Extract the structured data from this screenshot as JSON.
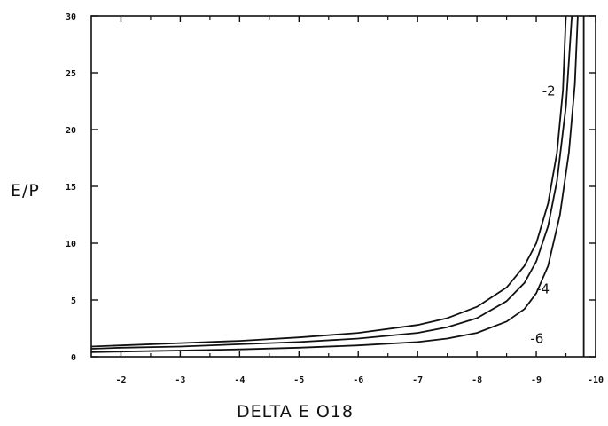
{
  "chart_data": {
    "type": "line",
    "title": "",
    "xlabel": "DELTA E O18",
    "ylabel": "E/P",
    "xlim": [
      -1.5,
      -10
    ],
    "ylim": [
      0,
      30
    ],
    "grid": false,
    "xticks": [
      -2,
      -3,
      -4,
      -5,
      -6,
      -7,
      -8,
      -9,
      -10
    ],
    "x_tick_labels": [
      "-2",
      "-3",
      "-4",
      "-5",
      "-6",
      "-7",
      "-8",
      "-9",
      "-10"
    ],
    "yticks": [
      0,
      5,
      10,
      15,
      20,
      25,
      30
    ],
    "y_tick_labels": [
      "0",
      "5",
      "10",
      "15",
      "20",
      "25",
      "30"
    ],
    "series": [
      {
        "name": "-2",
        "x": [
          -1.5,
          -2,
          -3,
          -4,
          -5,
          -6,
          -7,
          -7.5,
          -8,
          -8.5,
          -8.8,
          -9,
          -9.2,
          -9.35,
          -9.45,
          -9.5
        ],
        "y": [
          0.9,
          1.0,
          1.2,
          1.4,
          1.7,
          2.1,
          2.8,
          3.4,
          4.4,
          6.1,
          8.0,
          10.0,
          13.5,
          18.0,
          23.5,
          30.0
        ]
      },
      {
        "name": "-4",
        "x": [
          -1.5,
          -2,
          -3,
          -4,
          -5,
          -6,
          -7,
          -7.5,
          -8,
          -8.5,
          -8.8,
          -9,
          -9.2,
          -9.35,
          -9.5,
          -9.6
        ],
        "y": [
          0.7,
          0.8,
          0.9,
          1.1,
          1.3,
          1.6,
          2.1,
          2.6,
          3.4,
          4.9,
          6.5,
          8.4,
          11.5,
          15.5,
          22.0,
          30.0
        ]
      },
      {
        "name": "-6",
        "x": [
          -1.5,
          -2,
          -3,
          -4,
          -5,
          -6,
          -7,
          -7.5,
          -8,
          -8.5,
          -8.8,
          -9,
          -9.2,
          -9.4,
          -9.55,
          -9.65,
          -9.7
        ],
        "y": [
          0.4,
          0.45,
          0.55,
          0.65,
          0.8,
          1.0,
          1.3,
          1.6,
          2.1,
          3.1,
          4.2,
          5.6,
          8.0,
          12.5,
          18.0,
          24.0,
          30.0
        ]
      }
    ],
    "vertical_line_x": -9.8,
    "annotations": [
      {
        "text": "-2",
        "x": -9.1,
        "y": 23.0
      },
      {
        "text": "-4",
        "x": -9.0,
        "y": 5.6
      },
      {
        "text": "-6",
        "x": -8.9,
        "y": 1.2
      }
    ]
  }
}
